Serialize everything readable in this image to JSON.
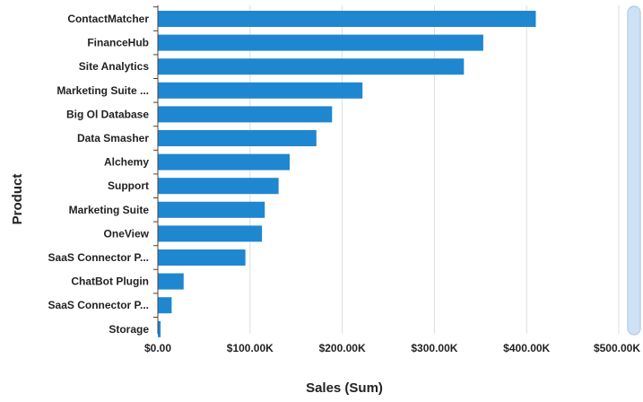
{
  "chart_data": {
    "type": "bar",
    "orientation": "horizontal",
    "xlabel": "Sales (Sum)",
    "ylabel": "Product",
    "xlim": [
      0,
      500000
    ],
    "grid": true,
    "bar_color": "#1f87d0",
    "categories": [
      "ContactMatcher",
      "FinanceHub",
      "Site Analytics",
      "Marketing Suite ...",
      "Big Ol Database",
      "Data Smasher",
      "Alchemy",
      "Support",
      "Marketing Suite",
      "OneView",
      "SaaS Connector P...",
      "ChatBot Plugin",
      "SaaS Connector P...",
      "Storage"
    ],
    "values": [
      410000,
      353000,
      332000,
      222000,
      189000,
      172000,
      143000,
      131000,
      116000,
      113000,
      95000,
      28000,
      15000,
      3000
    ],
    "x_ticks": [
      0,
      100000,
      200000,
      300000,
      400000,
      500000
    ],
    "x_tick_labels": [
      "$0.00",
      "$100.00K",
      "$200.00K",
      "$300.00K",
      "$400.00K",
      "$500.00K"
    ]
  }
}
